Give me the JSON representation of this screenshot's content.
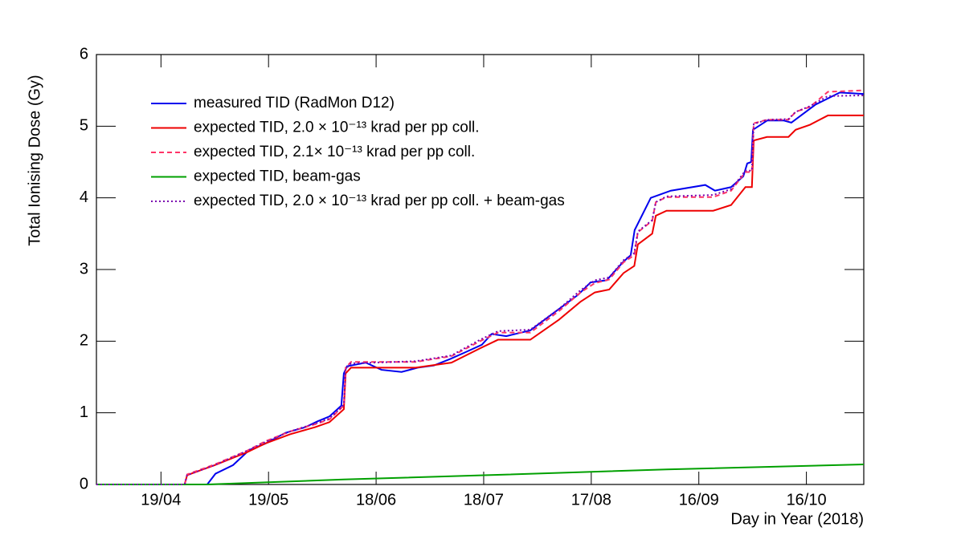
{
  "chart_data": {
    "type": "line",
    "x_label": "Day in Year (2018)",
    "y_label": "Total Ionising Dose (Gy)",
    "xlim": [
      91,
      305
    ],
    "ylim": [
      0,
      6
    ],
    "xticks": [
      {
        "value": 109,
        "label": "19/04"
      },
      {
        "value": 139,
        "label": "19/05"
      },
      {
        "value": 169,
        "label": "18/06"
      },
      {
        "value": 199,
        "label": "18/07"
      },
      {
        "value": 229,
        "label": "17/08"
      },
      {
        "value": 259,
        "label": "16/09"
      },
      {
        "value": 289,
        "label": "16/10"
      }
    ],
    "yticks": [
      0,
      1,
      2,
      3,
      4,
      5,
      6
    ],
    "series": [
      {
        "name": "measured TID (RadMon D12)",
        "color": "#0000ee",
        "dash": "solid",
        "x": [
          91,
          121.9,
          124.2,
          129.1,
          133.6,
          138.1,
          143.7,
          149.3,
          152.6,
          156,
          159.3,
          160,
          160.9,
          166.1,
          170.5,
          176.1,
          180.6,
          185.1,
          189.6,
          194.1,
          198.5,
          201.2,
          205.3,
          212,
          218.7,
          225.4,
          228.8,
          233.3,
          237.8,
          240,
          241.1,
          245.6,
          251.2,
          260.8,
          263.5,
          268,
          271.4,
          272.5,
          273.6,
          274.1,
          278.1,
          282.6,
          284.8,
          291.5,
          298.3,
          305
        ],
        "values": [
          0,
          0,
          0.15,
          0.27,
          0.48,
          0.57,
          0.72,
          0.8,
          0.88,
          0.95,
          1.1,
          1.55,
          1.65,
          1.7,
          1.6,
          1.57,
          1.63,
          1.66,
          1.75,
          1.85,
          1.95,
          2.1,
          2.07,
          2.15,
          2.4,
          2.65,
          2.82,
          2.85,
          3.1,
          3.2,
          3.55,
          4.0,
          4.1,
          4.18,
          4.1,
          4.15,
          4.3,
          4.48,
          4.5,
          4.95,
          5.08,
          5.08,
          5.05,
          5.3,
          5.47,
          5.45
        ]
      },
      {
        "name": "expected TID, 2.0 × 10⁻¹³ krad per pp coll.",
        "color": "#ee0000",
        "dash": "solid",
        "x": [
          91,
          115.6,
          116.3,
          124,
          133,
          138,
          145,
          152,
          156,
          160,
          160.5,
          162,
          180,
          190,
          198,
          203,
          212,
          220,
          226,
          230,
          234,
          238,
          241,
          242,
          246,
          247,
          250,
          263,
          268,
          272,
          273.8,
          274.3,
          278,
          284,
          286,
          290,
          295,
          305
        ],
        "values": [
          0,
          0,
          0.13,
          0.27,
          0.45,
          0.57,
          0.7,
          0.8,
          0.87,
          1.05,
          1.55,
          1.63,
          1.63,
          1.7,
          1.9,
          2.02,
          2.02,
          2.3,
          2.55,
          2.68,
          2.72,
          2.95,
          3.05,
          3.35,
          3.5,
          3.75,
          3.82,
          3.82,
          3.9,
          4.15,
          4.15,
          4.8,
          4.85,
          4.85,
          4.95,
          5.02,
          5.15,
          5.15
        ]
      },
      {
        "name": "expected TID, 2.1× 10⁻¹³ krad per pp coll.",
        "color": "#ff3366",
        "dash": "dashed",
        "x": [
          91,
          115.6,
          116.3,
          124,
          133,
          138,
          145,
          152,
          156,
          160,
          160.5,
          162,
          180,
          190,
          198,
          203,
          212,
          220,
          226,
          230,
          234,
          238,
          241,
          242,
          246,
          247,
          250,
          263,
          268,
          272,
          273.8,
          274.3,
          278,
          284,
          286,
          290,
          295,
          305
        ],
        "values": [
          0,
          0,
          0.14,
          0.28,
          0.47,
          0.6,
          0.74,
          0.84,
          0.91,
          1.1,
          1.63,
          1.71,
          1.71,
          1.79,
          2.0,
          2.12,
          2.12,
          2.42,
          2.68,
          2.81,
          2.86,
          3.1,
          3.2,
          3.52,
          3.68,
          3.94,
          4.01,
          4.01,
          4.1,
          4.36,
          4.36,
          5.04,
          5.09,
          5.09,
          5.2,
          5.27,
          5.48,
          5.5
        ]
      },
      {
        "name": "expected TID, beam-gas",
        "color": "#00a000",
        "dash": "solid",
        "x": [
          91,
          122,
          160,
          200,
          250,
          305
        ],
        "values": [
          0,
          0,
          0.07,
          0.13,
          0.21,
          0.28
        ]
      },
      {
        "name": "expected TID, 2.0 × 10⁻¹³ krad per pp coll. + beam-gas",
        "color": "#7a00b0",
        "dash": "dotted",
        "x": [
          91,
          115.6,
          116.3,
          124,
          133,
          138,
          145,
          152,
          156,
          160,
          160.5,
          162,
          180,
          190,
          198,
          203,
          212,
          220,
          226,
          230,
          234,
          238,
          241,
          242,
          246,
          247,
          250,
          263,
          268,
          272,
          273.8,
          274.3,
          278,
          284,
          286,
          290,
          295,
          305
        ],
        "values": [
          0,
          0,
          0.13,
          0.27,
          0.47,
          0.59,
          0.74,
          0.85,
          0.92,
          1.11,
          1.61,
          1.69,
          1.72,
          1.8,
          2.02,
          2.14,
          2.16,
          2.45,
          2.71,
          2.85,
          2.89,
          3.13,
          3.23,
          3.53,
          3.69,
          3.94,
          4.02,
          4.04,
          4.12,
          4.38,
          4.38,
          5.03,
          5.09,
          5.1,
          5.2,
          5.28,
          5.42,
          5.43
        ]
      }
    ]
  }
}
